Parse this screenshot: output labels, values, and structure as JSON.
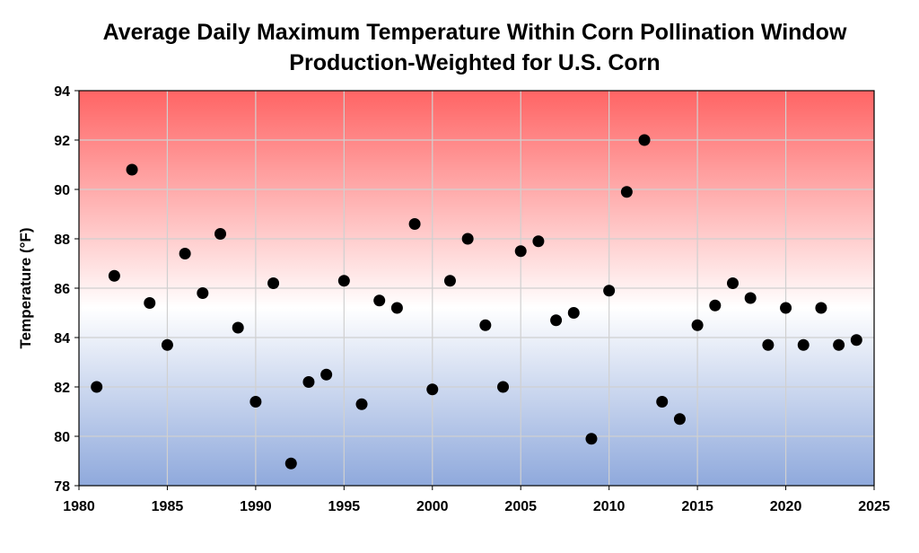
{
  "chart_data": {
    "type": "scatter",
    "title": "Average Daily Maximum Temperature Within Corn Pollination Window",
    "subtitle": "Production-Weighted for U.S. Corn",
    "xlabel": "",
    "ylabel": "Temperature (°F)",
    "xlim": [
      1980,
      2025
    ],
    "ylim": [
      78,
      94
    ],
    "xticks": [
      1980,
      1985,
      1990,
      1995,
      2000,
      2005,
      2010,
      2015,
      2020,
      2025
    ],
    "yticks": [
      78,
      80,
      82,
      84,
      86,
      88,
      90,
      92,
      94
    ],
    "grid": true,
    "background_gradient": {
      "top": "#ff6464",
      "middle": "#ffffff",
      "bottom": "#8fa9dc"
    },
    "marker_color": "#000000",
    "x": [
      1981,
      1982,
      1983,
      1984,
      1985,
      1986,
      1987,
      1988,
      1989,
      1990,
      1991,
      1992,
      1993,
      1994,
      1995,
      1996,
      1997,
      1998,
      1999,
      2000,
      2001,
      2002,
      2003,
      2004,
      2005,
      2006,
      2007,
      2008,
      2009,
      2010,
      2011,
      2012,
      2013,
      2014,
      2015,
      2016,
      2017,
      2018,
      2019,
      2020,
      2021,
      2022,
      2023,
      2024
    ],
    "y": [
      82.0,
      86.5,
      90.8,
      85.4,
      83.7,
      87.4,
      85.8,
      88.2,
      84.4,
      81.4,
      86.2,
      78.9,
      82.2,
      82.5,
      86.3,
      81.3,
      85.5,
      85.2,
      88.6,
      81.9,
      86.3,
      88.0,
      84.5,
      82.0,
      87.5,
      87.9,
      84.7,
      85.0,
      79.9,
      85.9,
      89.9,
      92.0,
      81.4,
      80.7,
      84.5,
      85.3,
      86.2,
      85.6,
      83.7,
      85.2,
      83.7,
      85.2,
      83.7,
      83.9
    ]
  }
}
